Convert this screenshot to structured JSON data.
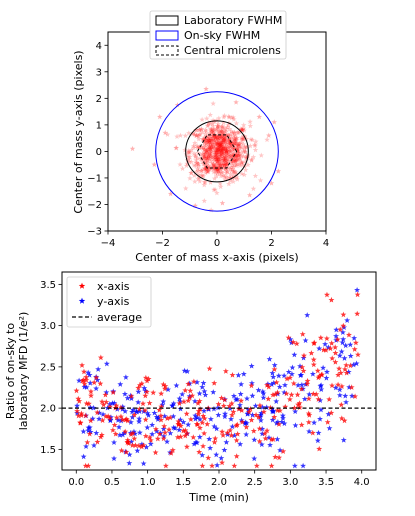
{
  "chart_data": [
    {
      "type": "scatter",
      "xlabel": "Center of mass x-axis (pixels)",
      "ylabel": "Center of mass y-axis (pixels)",
      "xlim": [
        -4,
        4
      ],
      "ylim": [
        -3,
        4.5
      ],
      "xticks": [
        -4,
        -2,
        0,
        2,
        4
      ],
      "yticks": [
        -3,
        -2,
        -1,
        0,
        1,
        2,
        3,
        4
      ],
      "grid": false,
      "legend_position": "top-center",
      "series": [
        {
          "name": "Laboratory FWHM",
          "kind": "circle",
          "center": [
            0,
            0
          ],
          "radius": 1.15,
          "color": "#000000"
        },
        {
          "name": "On-sky FWHM",
          "kind": "circle",
          "center": [
            0,
            0
          ],
          "radius": 2.25,
          "color": "#0000ff"
        },
        {
          "name": "Central microlens",
          "kind": "hexagon",
          "center": [
            0,
            0
          ],
          "radius": 0.72,
          "color": "#000000",
          "dash": true
        }
      ],
      "points": {
        "color": "#ff0000",
        "marker": "star",
        "count": 780,
        "spread_x": 0.55,
        "spread_y": 0.55,
        "outliers": [
          [
            -3.1,
            0.1
          ],
          [
            -2.1,
            1.3
          ],
          [
            -1.7,
            -1.6
          ],
          [
            -1.45,
            1.75
          ],
          [
            2.25,
            -0.75
          ],
          [
            2.0,
            -1.2
          ],
          [
            1.55,
            1.3
          ],
          [
            -0.4,
            2.35
          ],
          [
            0.7,
            1.85
          ],
          [
            1.2,
            -1.65
          ],
          [
            -1.9,
            0.7
          ],
          [
            1.9,
            0.6
          ],
          [
            -0.8,
            -2.05
          ],
          [
            0.2,
            -1.95
          ],
          [
            -2.3,
            -0.5
          ],
          [
            2.1,
            1.1
          ]
        ]
      }
    },
    {
      "type": "scatter",
      "xlabel": "Time (min)",
      "ylabel": "Ratio of on-sky to laboratory MFD (1/e²)",
      "ylabel_lines": [
        "Ratio of on-sky to",
        "laboratory MFD (1/e²)"
      ],
      "xlim": [
        -0.2,
        4.2
      ],
      "ylim": [
        1.25,
        3.65
      ],
      "xticks": [
        "0.0",
        "0.5",
        "1.0",
        "1.5",
        "2.0",
        "2.5",
        "3.0",
        "3.5",
        "4.0"
      ],
      "yticks": [
        "1.5",
        "2.0",
        "2.5",
        "3.0",
        "3.5"
      ],
      "grid": false,
      "legend_position": "top-left",
      "series": [
        {
          "name": "x-axis",
          "color": "#ff0000",
          "marker": "star"
        },
        {
          "name": "y-axis",
          "color": "#0000ff",
          "marker": "star"
        },
        {
          "name": "average",
          "color": "#000000",
          "line": "dashed",
          "value": 2.0
        }
      ],
      "points_per_series": 300,
      "time_range": [
        0.0,
        3.95
      ],
      "trend": [
        [
          0.0,
          2.05
        ],
        [
          0.3,
          2.0
        ],
        [
          0.7,
          1.88
        ],
        [
          1.1,
          1.8
        ],
        [
          1.5,
          1.85
        ],
        [
          2.0,
          1.88
        ],
        [
          2.5,
          1.9
        ],
        [
          2.9,
          2.05
        ],
        [
          3.1,
          2.25
        ],
        [
          3.5,
          2.35
        ],
        [
          3.95,
          2.6
        ]
      ],
      "scatter_sd": 0.27,
      "y_clip": [
        1.3,
        3.6
      ]
    }
  ]
}
